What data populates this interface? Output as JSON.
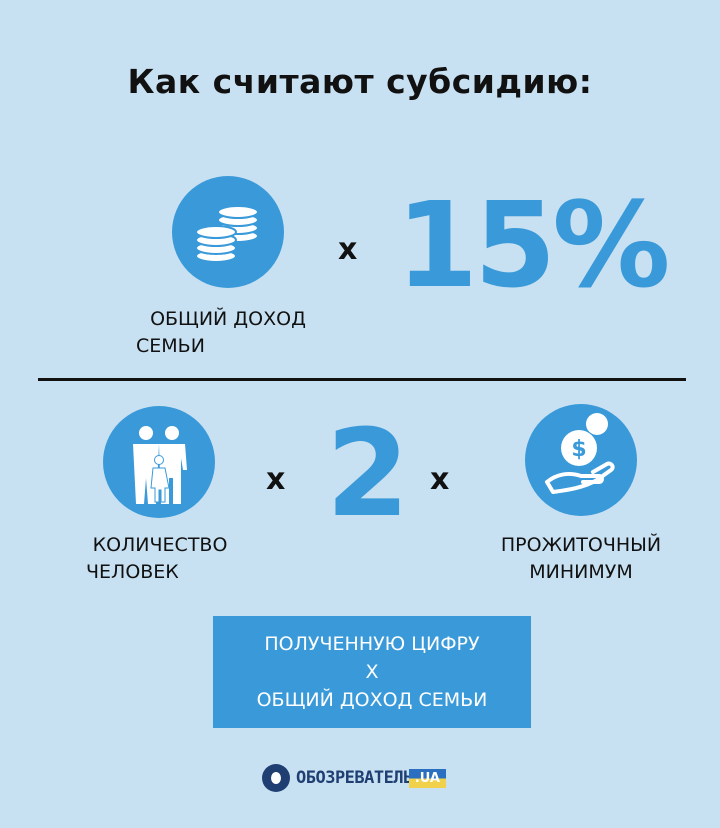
{
  "title": "Как считают субсидию:",
  "row1": {
    "icon": "coins-icon",
    "label_line1": "ОБЩИЙ ДОХОД",
    "label_line2": "СЕМЬИ",
    "operator": "x",
    "value": "15%"
  },
  "row2": {
    "left": {
      "icon": "family-icon",
      "label_line1": "КОЛИЧЕСТВО",
      "label_line2": "ЧЕЛОВЕК"
    },
    "operator1": "x",
    "value": "2",
    "operator2": "x",
    "right": {
      "icon": "hand-coin-icon",
      "label_line1": "ПРОЖИТОЧНЫЙ",
      "label_line2": "МИНИМУМ"
    }
  },
  "result": {
    "line1": "ПОЛУЧЕННУЮ ЦИФРУ",
    "line2": "Х",
    "line3": "ОБЩИЙ ДОХОД СЕМЬИ"
  },
  "logo": {
    "text": "ОБОЗРЕВАТЕЛЬ",
    "suffix": ".UA"
  },
  "colors": {
    "background": "#c8e1f2",
    "accent": "#3a9ad9",
    "text": "#111111"
  }
}
